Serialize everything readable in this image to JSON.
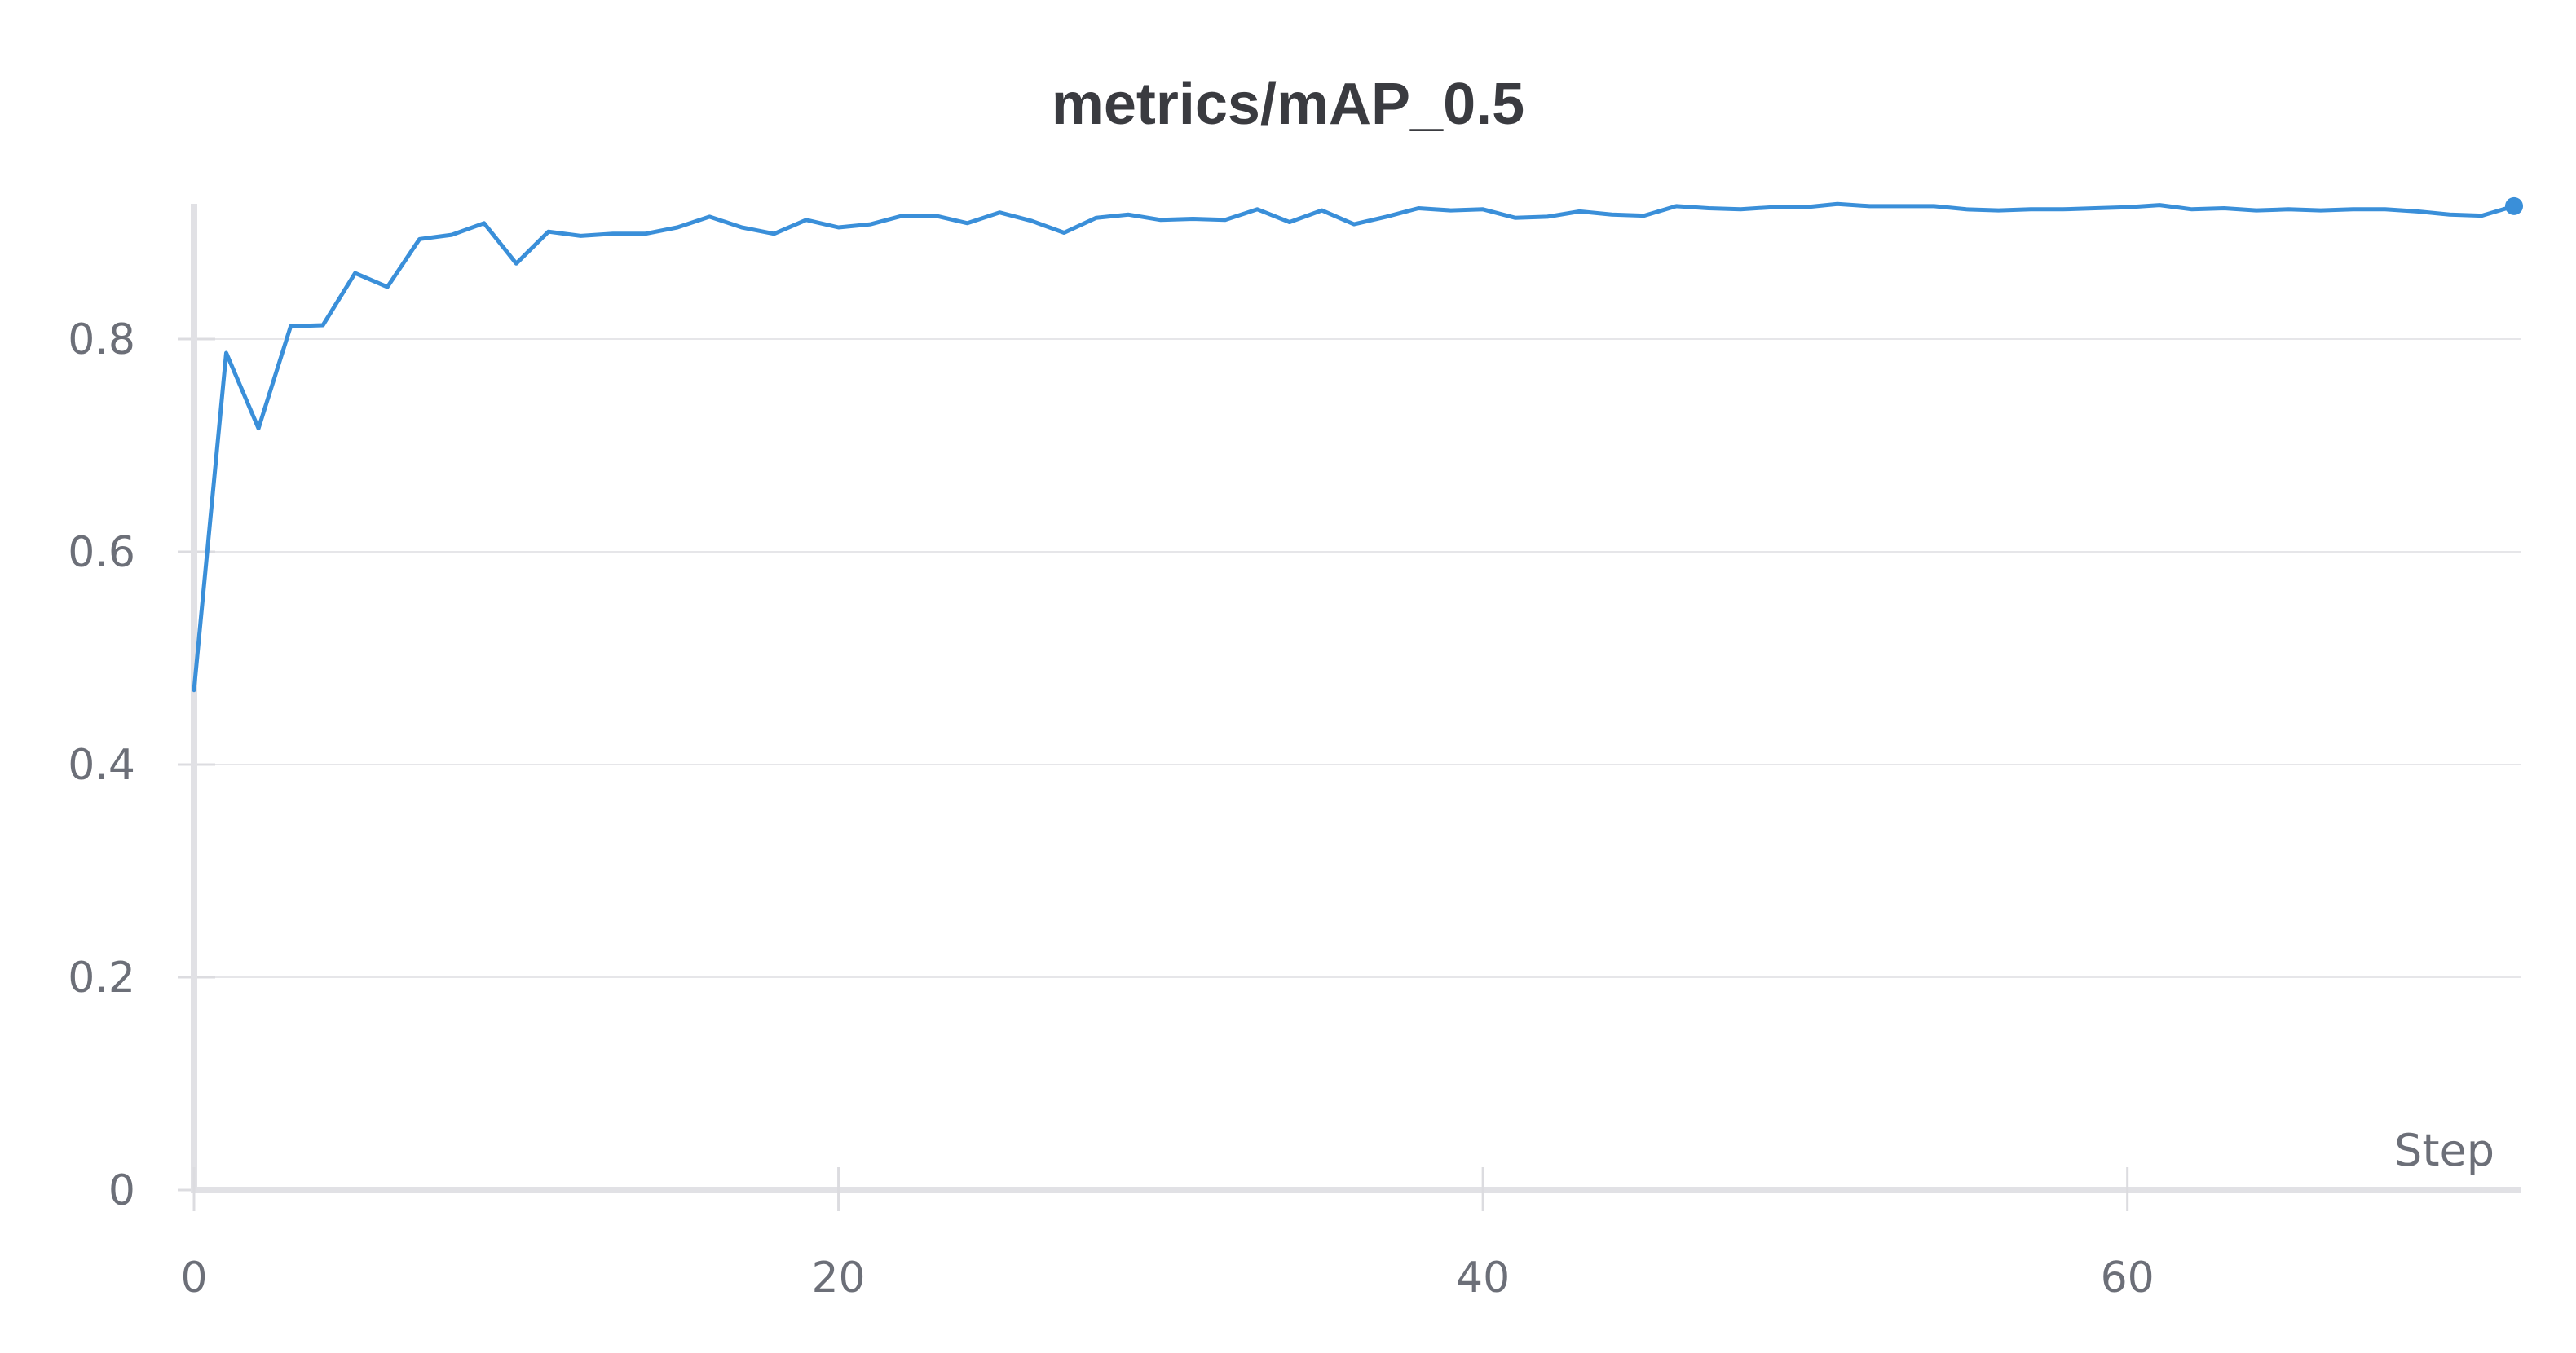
{
  "chart_data": {
    "type": "line",
    "title": "metrics/mAP_0.5",
    "xlabel": "Step",
    "ylabel": "",
    "xlim": [
      0,
      72
    ],
    "ylim": [
      0,
      0.93
    ],
    "xticks": [
      0,
      20,
      40,
      60
    ],
    "yticks": [
      0,
      0.2,
      0.4,
      0.6,
      0.8
    ],
    "xtick_labels": [
      "0",
      "20",
      "40",
      "60"
    ],
    "ytick_labels": [
      "0",
      "0.2",
      "0.4",
      "0.6",
      "0.8"
    ],
    "grid": "horizontal",
    "line_color": "#3a8fd9",
    "series": [
      {
        "x": [
          0,
          1,
          2,
          3,
          4,
          5,
          6,
          7,
          8,
          9,
          10,
          11,
          12,
          13,
          14,
          15,
          16,
          17,
          18,
          19,
          20,
          21,
          22,
          23,
          24,
          25,
          26,
          27,
          28,
          29,
          30,
          31,
          32,
          33,
          34,
          35,
          36,
          37,
          38,
          39,
          40,
          41,
          42,
          43,
          44,
          45,
          46,
          47,
          48,
          49,
          50,
          51,
          52,
          53,
          54,
          55,
          56,
          57,
          58,
          59,
          60,
          61,
          62,
          63,
          64,
          65,
          66,
          67,
          68,
          69,
          70,
          71,
          72
        ],
        "values": [
          0.47,
          0.787,
          0.716,
          0.812,
          0.813,
          0.862,
          0.849,
          0.894,
          0.898,
          0.909,
          0.871,
          0.901,
          0.897,
          0.899,
          0.899,
          0.905,
          0.915,
          0.905,
          0.899,
          0.912,
          0.905,
          0.908,
          0.916,
          0.916,
          0.909,
          0.919,
          0.911,
          0.9,
          0.914,
          0.917,
          0.912,
          0.913,
          0.912,
          0.922,
          0.91,
          0.921,
          0.908,
          0.915,
          0.923,
          0.921,
          0.922,
          0.914,
          0.915,
          0.92,
          0.917,
          0.916,
          0.925,
          0.923,
          0.922,
          0.924,
          0.924,
          0.927,
          0.925,
          0.925,
          0.925,
          0.922,
          0.921,
          0.922,
          0.922,
          0.923,
          0.924,
          0.926,
          0.922,
          0.923,
          0.921,
          0.922,
          0.921,
          0.922,
          0.922,
          0.92,
          0.917,
          0.916,
          0.925
        ]
      }
    ]
  }
}
